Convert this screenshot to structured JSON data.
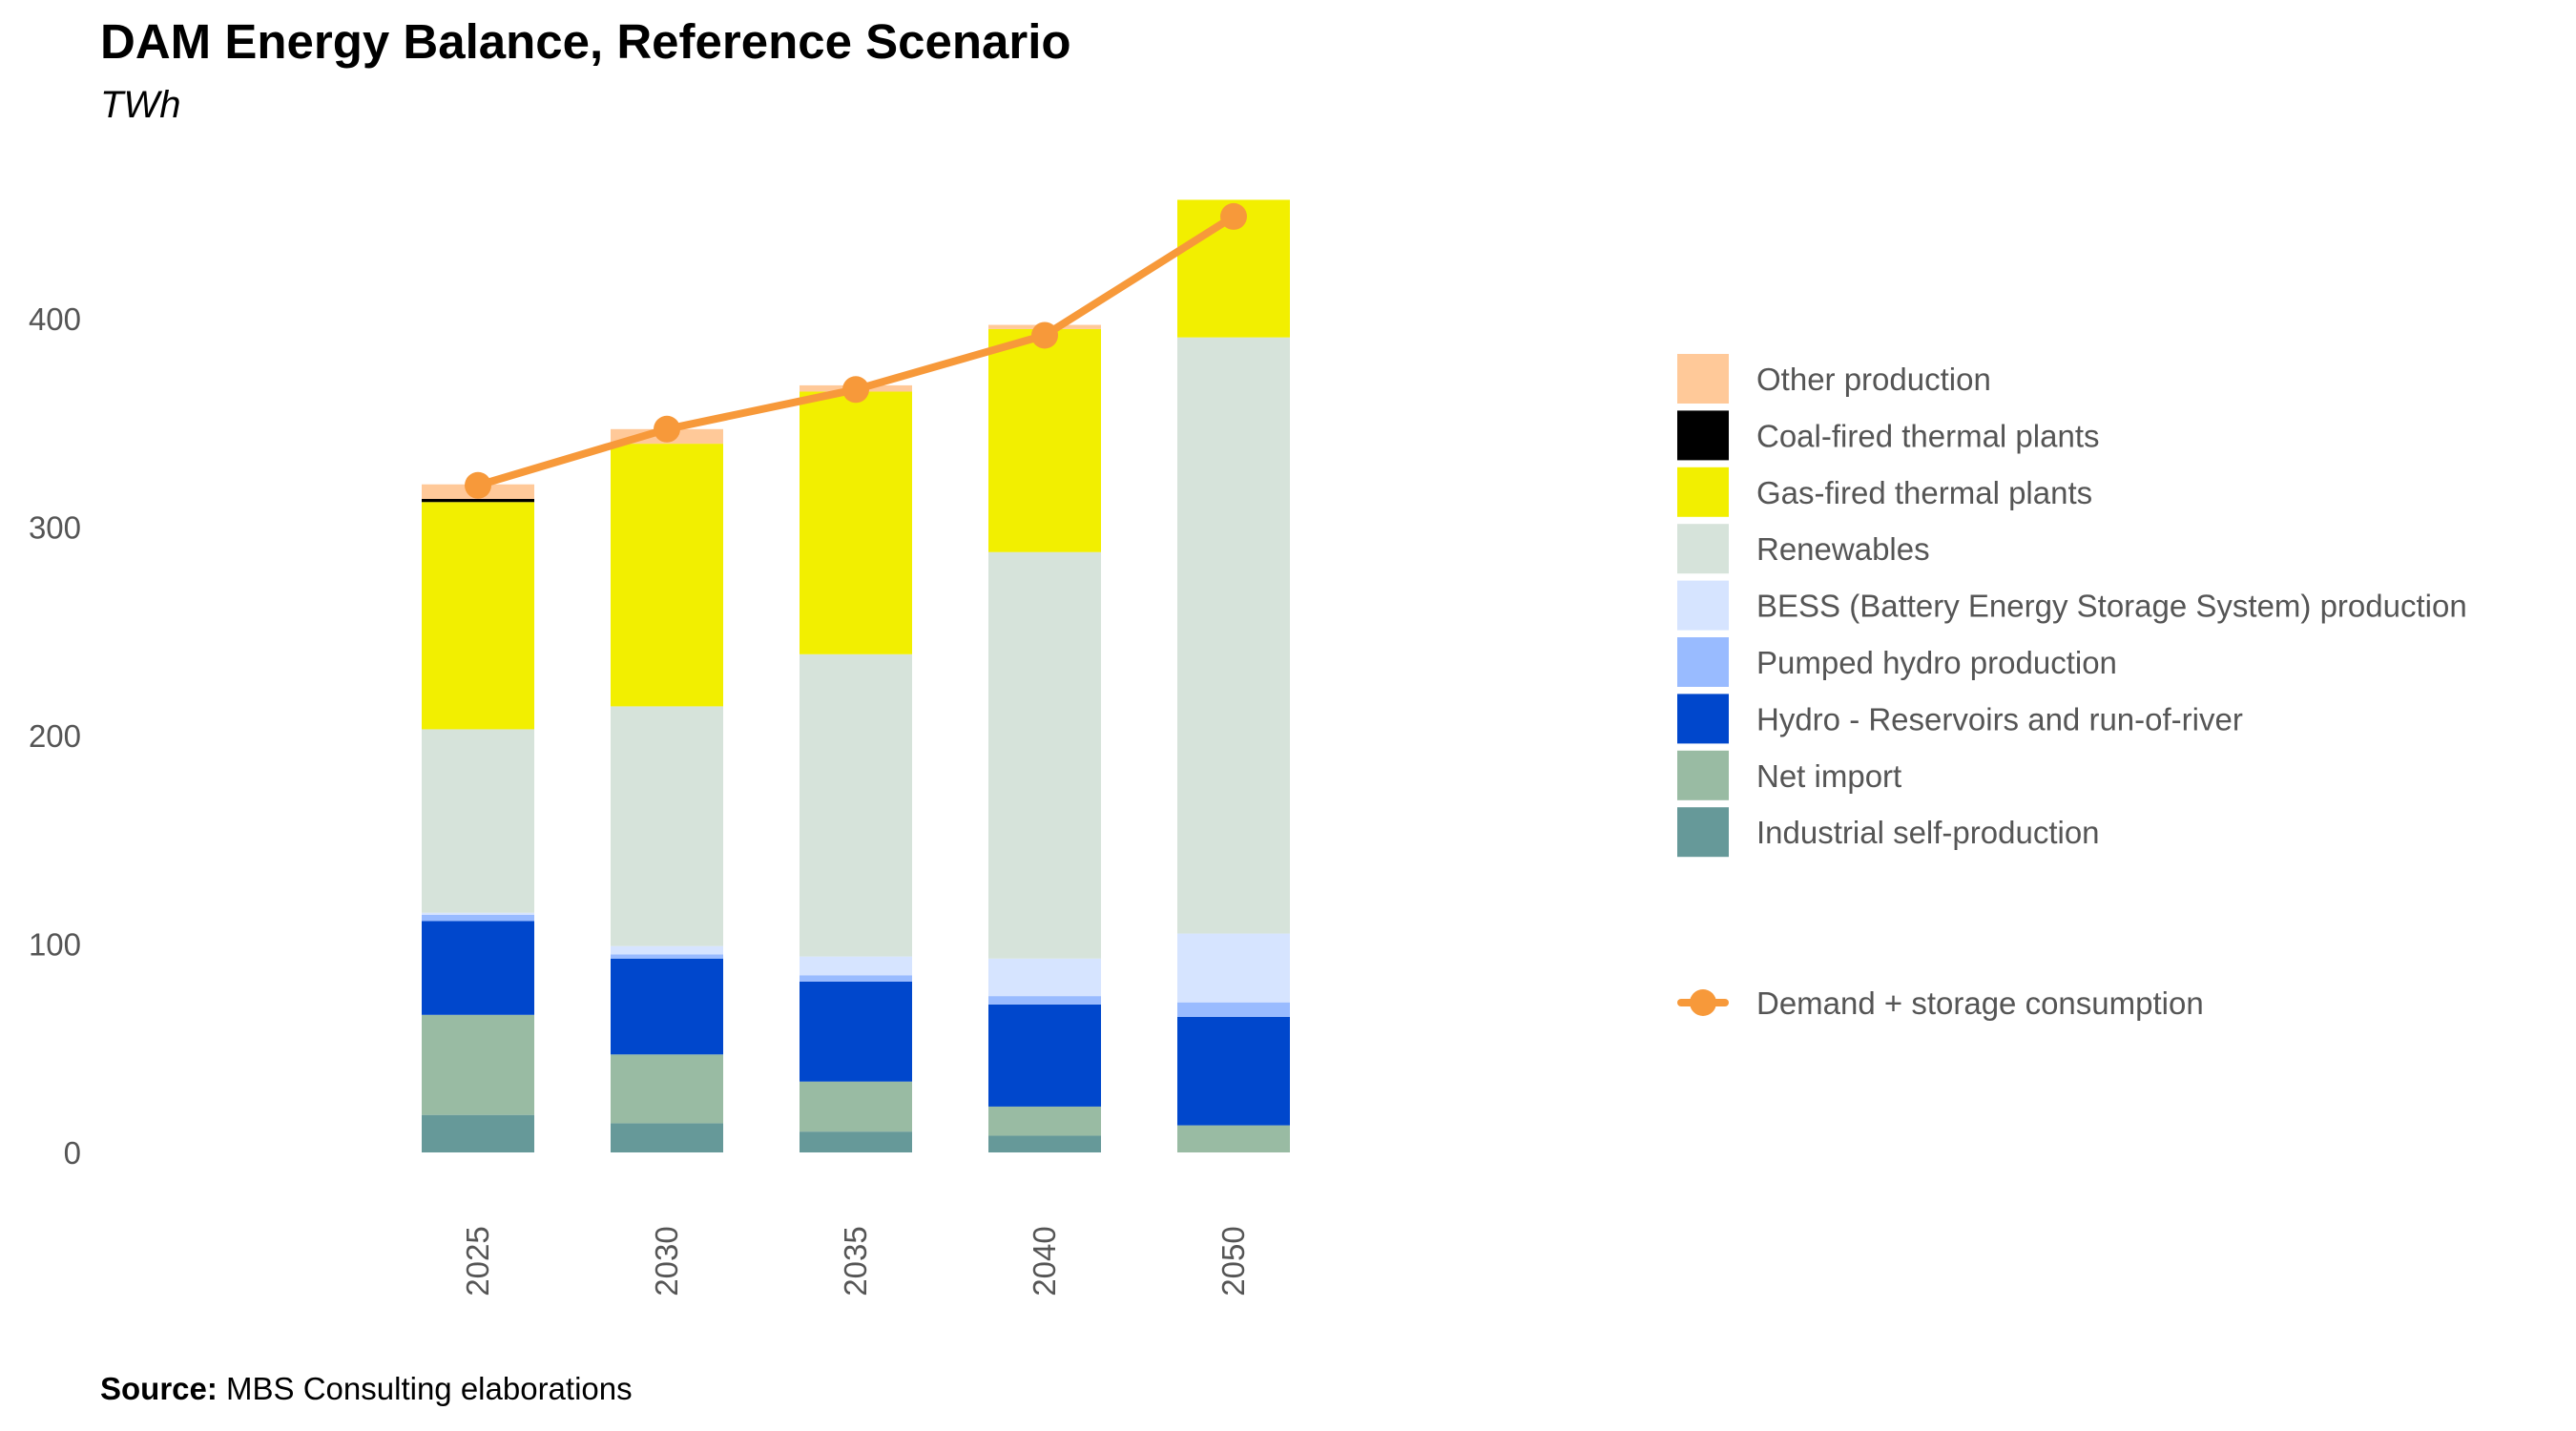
{
  "title": "DAM Energy Balance, Reference Scenario",
  "subtitle": "TWh",
  "source": {
    "label": "Source:",
    "text": "MBS Consulting elaborations"
  },
  "chart_data": {
    "type": "bar",
    "stacked": true,
    "categories": [
      "2025",
      "2030",
      "2035",
      "2040",
      "2050"
    ],
    "y_ticks": [
      0,
      100,
      200,
      300,
      400
    ],
    "ylim": [
      0,
      470
    ],
    "series": [
      {
        "name": "Industrial self-production",
        "color": "#669999",
        "values": [
          18,
          14,
          10,
          8,
          0
        ]
      },
      {
        "name": "Net import",
        "color": "#99bba3",
        "values": [
          48,
          33,
          24,
          14,
          13
        ]
      },
      {
        "name": "Hydro - Reservoirs and run-of-river",
        "color": "#0047cc",
        "values": [
          45,
          46,
          48,
          49,
          52
        ]
      },
      {
        "name": "Pumped hydro production",
        "color": "#99bbff",
        "values": [
          3,
          2,
          3,
          4,
          7
        ]
      },
      {
        "name": "BESS (Battery Energy Storage System) production",
        "color": "#d6e4ff",
        "values": [
          1,
          4,
          9,
          18,
          33
        ]
      },
      {
        "name": "Renewables",
        "color": "#d6e3da",
        "values": [
          88,
          115,
          145,
          195,
          286
        ]
      },
      {
        "name": "Gas-fired thermal plants",
        "color": "#f2ef00",
        "values": [
          109,
          126,
          126,
          107,
          66
        ]
      },
      {
        "name": "Coal-fired thermal plants",
        "color": "#000000",
        "values": [
          1.5,
          0,
          0,
          0,
          0
        ]
      },
      {
        "name": "Other production",
        "color": "#ffc999",
        "values": [
          7,
          7,
          3,
          2,
          0
        ]
      }
    ],
    "line": {
      "name": "Demand + storage consumption",
      "color": "#f7993a",
      "values": [
        320,
        347,
        366,
        392,
        449
      ]
    },
    "legend_position": "right"
  }
}
